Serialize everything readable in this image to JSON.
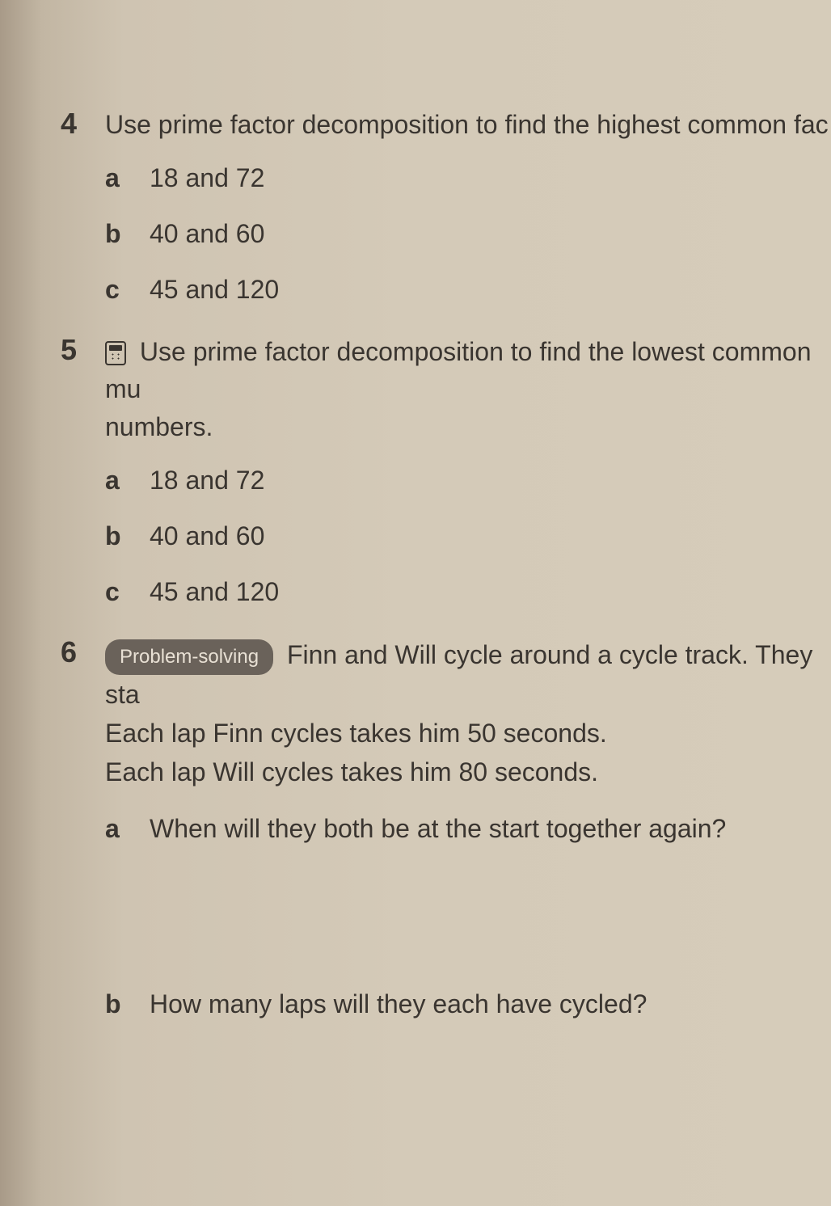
{
  "questions": {
    "q4": {
      "number": "4",
      "text": "Use prime factor decomposition to find the highest common fac",
      "items": {
        "a": {
          "letter": "a",
          "text": "18 and 72"
        },
        "b": {
          "letter": "b",
          "text": "40 and 60"
        },
        "c": {
          "letter": "c",
          "text": "45 and 120"
        }
      }
    },
    "q5": {
      "number": "5",
      "text_line1": "Use prime factor decomposition to find the lowest common mu",
      "text_line2": "numbers.",
      "items": {
        "a": {
          "letter": "a",
          "text": "18 and 72"
        },
        "b": {
          "letter": "b",
          "text": "40 and 60"
        },
        "c": {
          "letter": "c",
          "text": "45 and 120"
        }
      }
    },
    "q6": {
      "number": "6",
      "badge": "Problem-solving",
      "text_line1": "Finn and Will cycle around a cycle track. They sta",
      "text_line2": "Each lap Finn cycles takes him 50 seconds.",
      "text_line3": "Each lap Will cycles takes him 80 seconds.",
      "items": {
        "a": {
          "letter": "a",
          "text": "When will they both be at the start together again?"
        },
        "b": {
          "letter": "b",
          "text": "How many laps will they each have cycled?"
        }
      }
    }
  },
  "styling": {
    "background_gradient_start": "#a89a88",
    "background_gradient_end": "#d6ccba",
    "text_color": "#3a3530",
    "badge_bg": "#6a625a",
    "badge_text": "#e8e0d4",
    "body_fontsize": 32,
    "number_fontsize": 36,
    "badge_fontsize": 24,
    "font_family": "Arial"
  }
}
